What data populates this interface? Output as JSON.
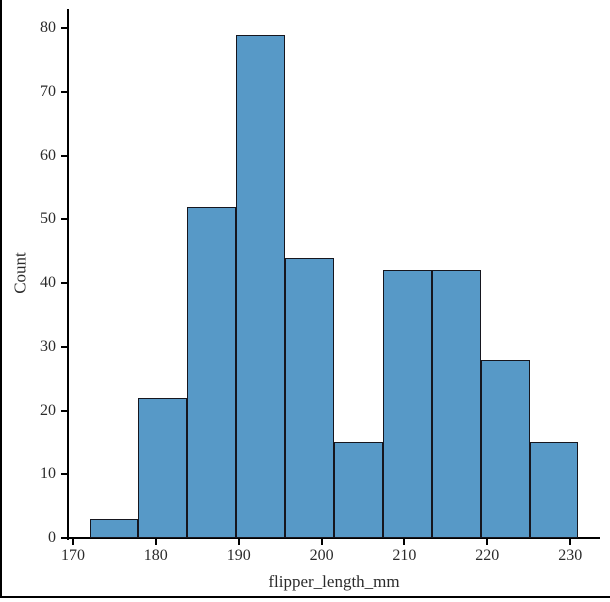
{
  "colors": {
    "bar_fill": "#5799c7",
    "bar_edge": "#16161e",
    "spine": "#000000",
    "text": "#2b2b2b",
    "frame_border": "#000000",
    "background": "#ffffff"
  },
  "chart_data": {
    "type": "histogram",
    "title": "",
    "xlabel": "flipper_length_mm",
    "ylabel": "Count",
    "bin_edges": [
      172.0,
      177.9,
      183.8,
      189.7,
      195.6,
      201.5,
      207.4,
      213.3,
      219.2,
      225.1,
      231.0
    ],
    "counts": [
      3,
      22,
      52,
      79,
      44,
      15,
      42,
      42,
      28,
      15
    ],
    "x_ticks": [
      170,
      180,
      190,
      200,
      210,
      220,
      230
    ],
    "y_ticks": [
      0,
      10,
      20,
      30,
      40,
      50,
      60,
      70,
      80
    ],
    "xlim": [
      169.4,
      233.6
    ],
    "ylim": [
      0,
      83
    ],
    "grid": false,
    "legend_position": "none"
  }
}
